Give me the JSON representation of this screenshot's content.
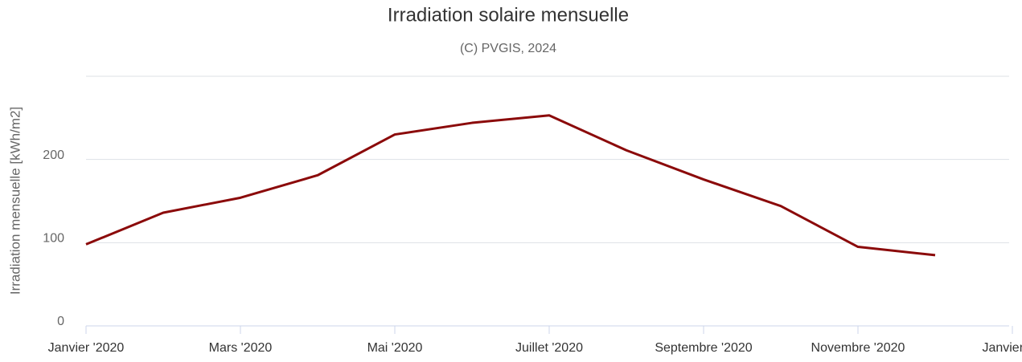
{
  "chart_data": {
    "type": "line",
    "title": "Irradiation solaire mensuelle",
    "subtitle": "(C) PVGIS, 2024",
    "y_label": "Irradiation mensuelle [kWh/m2]",
    "categories": [
      "Janvier '2020",
      null,
      "Mars '2020",
      null,
      "Mai '2020",
      null,
      "Juillet '2020",
      null,
      "Septembre '2020",
      null,
      "Novembre '2020",
      null,
      "Janvier '…"
    ],
    "series": [
      {
        "name": "Irradiation mensuelle",
        "color": "#8b0a0a",
        "values": [
          98,
          136,
          154,
          181,
          230,
          244,
          253,
          211,
          176,
          144,
          95,
          85,
          null
        ]
      }
    ],
    "ylim": [
      0,
      300
    ],
    "yticks": [
      0,
      100,
      200
    ],
    "grid": true
  }
}
